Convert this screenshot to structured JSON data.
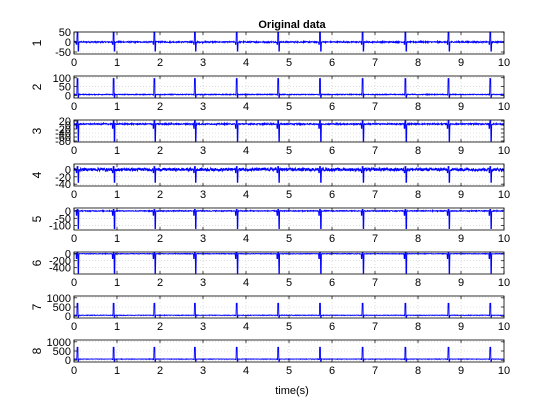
{
  "chart_data": {
    "type": "line",
    "title": "Original data",
    "xlabel": "time(s)",
    "xlim": [
      0,
      10
    ],
    "xticks": [
      0,
      1,
      2,
      3,
      4,
      5,
      6,
      7,
      8,
      9,
      10
    ],
    "grid": true,
    "line_color": "#0000ff",
    "beat_times": [
      0.08,
      0.92,
      1.87,
      2.81,
      3.78,
      4.75,
      5.72,
      6.71,
      7.71,
      8.71,
      9.68
    ],
    "panels": [
      {
        "ylabel": "1",
        "ylim": [
          -60,
          50
        ],
        "yticks": [
          -50,
          0,
          50
        ],
        "baseline": 0,
        "spike": 50,
        "trough": -45,
        "noise": 3
      },
      {
        "ylabel": "2",
        "ylim": [
          -15,
          110
        ],
        "yticks": [
          0,
          50,
          100
        ],
        "baseline": 5,
        "spike": 95,
        "trough": -10,
        "noise": 2
      },
      {
        "ylabel": "3",
        "ylim": [
          -85,
          25
        ],
        "yticks": [
          -80,
          -60,
          -40,
          -20,
          0,
          20
        ],
        "baseline": 5,
        "spike": 20,
        "trough": -80,
        "noise": 3
      },
      {
        "ylabel": "4",
        "ylim": [
          -45,
          15
        ],
        "yticks": [
          -40,
          -20,
          0
        ],
        "baseline": 0,
        "spike": 8,
        "trough": -35,
        "noise": 4
      },
      {
        "ylabel": "5",
        "ylim": [
          -130,
          20
        ],
        "yticks": [
          -100,
          -50,
          0
        ],
        "baseline": 0,
        "spike": 10,
        "trough": -120,
        "noise": 3
      },
      {
        "ylabel": "6",
        "ylim": [
          -580,
          50
        ],
        "yticks": [
          -400,
          -200,
          0
        ],
        "baseline": 0,
        "spike": 30,
        "trough": -550,
        "noise": 8
      },
      {
        "ylabel": "7",
        "ylim": [
          -100,
          1100
        ],
        "yticks": [
          0,
          500,
          1000
        ],
        "baseline": 50,
        "spike": 700,
        "trough": -50,
        "noise": 12
      },
      {
        "ylabel": "8",
        "ylim": [
          -100,
          1100
        ],
        "yticks": [
          0,
          500,
          1000
        ],
        "baseline": 60,
        "spike": 700,
        "trough": -50,
        "noise": 12
      }
    ]
  }
}
